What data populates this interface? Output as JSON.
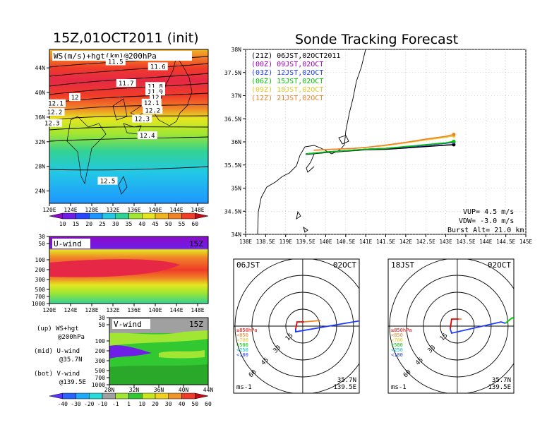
{
  "page": {
    "title_left": "15Z,01OCT2011 (init)",
    "title_right": "Sonde Tracking Forecast"
  },
  "colors": {
    "cbar_top": [
      "#8c0ac8",
      "#6e1ee6",
      "#2846ff",
      "#1e96ff",
      "#22c8e6",
      "#32d292",
      "#a0e632",
      "#e6e620",
      "#f0b41e",
      "#f08228",
      "#f03c28",
      "#c80a14"
    ],
    "cbar_bottom": [
      "#5a32ff",
      "#2864ff",
      "#1eaaff",
      "#28dcdc",
      "#a0a0a0",
      "#a0e632",
      "#32c832",
      "#c8e61e",
      "#f0d21e",
      "#f09628",
      "#f03c28",
      "#c80a14"
    ]
  },
  "chart_data": [
    {
      "type": "heatmap",
      "panel": "ws_hgt_200hPa",
      "title": "WS(m/s)+hgt(km)@200hPa",
      "x_ticks": [
        "120E",
        "124E",
        "128E",
        "132E",
        "136E",
        "140E",
        "144E",
        "148E"
      ],
      "y_ticks": [
        "24N",
        "28N",
        "32N",
        "36N",
        "40N",
        "44N"
      ],
      "height_contour_labels": [
        {
          "label": "11.5",
          "lon": 132.5,
          "lat": 45.0
        },
        {
          "label": "11.6",
          "lon": 140.5,
          "lat": 44.2
        },
        {
          "label": "11.7",
          "lon": 134.5,
          "lat": 41.5
        },
        {
          "label": "11.8",
          "lon": 140.0,
          "lat": 41.0
        },
        {
          "label": "11.9",
          "lon": 140.0,
          "lat": 40.1
        },
        {
          "label": "12",
          "lon": 124.8,
          "lat": 39.2
        },
        {
          "label": "12",
          "lon": 140.0,
          "lat": 39.2
        },
        {
          "label": "12.1",
          "lon": 121.2,
          "lat": 38.2
        },
        {
          "label": "12.1",
          "lon": 139.3,
          "lat": 38.3
        },
        {
          "label": "12.2",
          "lon": 121.0,
          "lat": 36.8
        },
        {
          "label": "12.2",
          "lon": 139.5,
          "lat": 37.1
        },
        {
          "label": "12.3",
          "lon": 120.5,
          "lat": 35.0
        },
        {
          "label": "12.3",
          "lon": 137.5,
          "lat": 35.7
        },
        {
          "label": "12.4",
          "lon": 138.5,
          "lat": 33.0
        },
        {
          "label": "12.5",
          "lon": 131.0,
          "lat": 25.6
        }
      ],
      "colorbar_ticks": [
        "10",
        "15",
        "20",
        "25",
        "30",
        "35",
        "40",
        "45",
        "50",
        "55",
        "60"
      ]
    },
    {
      "type": "heatmap",
      "panel": "u_wind",
      "title": "U-wind",
      "time_label": "15Z",
      "x_ticks": [
        "120E",
        "124E",
        "128E",
        "132E",
        "136E",
        "140E",
        "144E",
        "148E"
      ],
      "y_ticks": [
        "30",
        "50",
        "100",
        "200",
        "300",
        "500",
        "700",
        "1000"
      ]
    },
    {
      "type": "heatmap",
      "panel": "v_wind",
      "title": "V-wind",
      "time_label": "15Z",
      "x_ticks": [
        "28N",
        "32N",
        "36N",
        "40N",
        "44N"
      ],
      "y_ticks": [
        "30",
        "50",
        "100",
        "200",
        "300",
        "500",
        "700",
        "1000"
      ],
      "colorbar_ticks": [
        "-40",
        "-30",
        "-20",
        "-10",
        "-1",
        "1",
        "10",
        "20",
        "30",
        "40",
        "50",
        "60"
      ]
    },
    {
      "type": "line",
      "panel": "sonde_tracking",
      "title": "Sonde Tracking Forecast",
      "x_ticks": [
        "138E",
        "138.5E",
        "139E",
        "139.5E",
        "140E",
        "140.5E",
        "141E",
        "141.5E",
        "142E",
        "142.5E",
        "143E",
        "143.5E",
        "144E",
        "144.5E",
        "145E"
      ],
      "y_ticks": [
        "34N",
        "34.5N",
        "35N",
        "35.5N",
        "36N",
        "36.5N",
        "37N",
        "37.5N",
        "38N"
      ],
      "xlim": [
        138,
        145
      ],
      "ylim": [
        34,
        38
      ],
      "series": [
        {
          "name": "(21Z) 06JST,02OCT2011",
          "color": "#000000",
          "lon": [
            139.5,
            140.0,
            140.5,
            141.0,
            141.5,
            142.0,
            142.5,
            143.0,
            143.2
          ],
          "lat": [
            35.73,
            35.77,
            35.8,
            35.83,
            35.84,
            35.87,
            35.9,
            35.93,
            35.94
          ]
        },
        {
          "name": "(00Z) 09JST,02OCT",
          "color": "#a000c0",
          "lon": [
            139.5,
            140.0,
            140.5,
            141.0,
            141.5,
            142.0,
            142.5,
            143.0,
            143.2
          ],
          "lat": [
            35.74,
            35.78,
            35.81,
            35.84,
            35.86,
            35.89,
            35.93,
            35.97,
            35.99
          ]
        },
        {
          "name": "(03Z) 12JST,02OCT",
          "color": "#1e3cff",
          "lon": [
            139.5,
            140.0,
            140.5,
            141.0,
            141.5,
            142.0,
            142.5,
            143.0,
            143.2
          ],
          "lat": [
            35.74,
            35.78,
            35.81,
            35.84,
            35.86,
            35.89,
            35.93,
            35.97,
            36.0
          ]
        },
        {
          "name": "(06Z) 15JST,02OCT",
          "color": "#00c800",
          "lon": [
            139.5,
            140.0,
            140.5,
            141.0,
            141.5,
            142.0,
            142.5,
            143.0,
            143.2
          ],
          "lat": [
            35.74,
            35.78,
            35.81,
            35.84,
            35.86,
            35.9,
            35.94,
            35.98,
            36.01
          ]
        },
        {
          "name": "(09Z) 18JST,02OCT",
          "color": "#e6c828",
          "lon": [
            139.7,
            140.2,
            140.7,
            141.0,
            141.5,
            142.0,
            142.5,
            143.0,
            143.2
          ],
          "lat": [
            35.82,
            35.84,
            35.86,
            35.88,
            35.92,
            35.98,
            36.04,
            36.1,
            36.13
          ]
        },
        {
          "name": "(12Z) 21JST,02OCT",
          "color": "#f08228",
          "lon": [
            139.7,
            140.2,
            140.7,
            141.0,
            141.5,
            142.0,
            142.5,
            143.0,
            143.2
          ],
          "lat": [
            35.82,
            35.84,
            35.86,
            35.88,
            35.93,
            35.99,
            36.06,
            36.12,
            36.16
          ]
        }
      ],
      "annotations": [
        "VUP= 4.5 m/s",
        "VDW= -3.0 m/s",
        "Burst Alt= 21.0 km"
      ]
    },
    {
      "type": "line",
      "panel": "hodograph_06JST",
      "time_label": "06JST",
      "date_label": "02OCT",
      "ring_labels": [
        "15",
        "30",
        "45",
        "60"
      ],
      "location": [
        "35.7N",
        "139.5E"
      ],
      "units": "ms-1",
      "level_legend": [
        "≥850hPa",
        "<850",
        "<700",
        "<500",
        "<250",
        "<100"
      ]
    },
    {
      "type": "line",
      "panel": "hodograph_18JST",
      "time_label": "18JST",
      "date_label": "02OCT",
      "ring_labels": [
        "15",
        "30",
        "45",
        "60"
      ],
      "location": [
        "35.7N",
        "139.5E"
      ],
      "units": "ms-1",
      "level_legend": [
        "≥850hPa",
        "<850",
        "<700",
        "<500",
        "<250",
        "<100"
      ]
    }
  ],
  "side_legend": {
    "up_line1": "(up) WS+hgt",
    "up_line2": "@200hPa",
    "mid_line1": "(mid) U-wind",
    "mid_line2": "@35.7N",
    "bot_line1": "(bot) V-wind",
    "bot_line2": "@139.5E"
  }
}
